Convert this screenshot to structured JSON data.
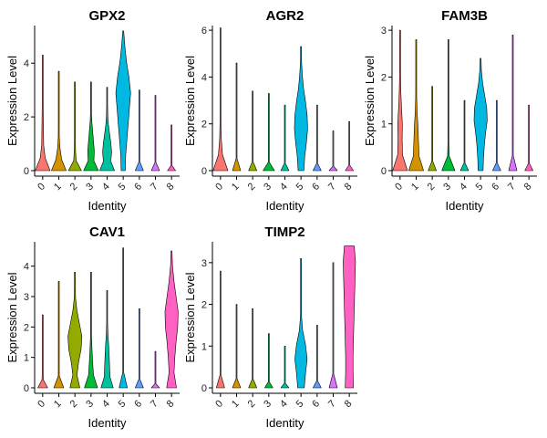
{
  "chart_data": [
    {
      "type": "violin",
      "title": "GPX2",
      "xlabel": "Identity",
      "ylabel": "Expression Level",
      "categories": [
        "0",
        "1",
        "2",
        "3",
        "4",
        "5",
        "6",
        "7",
        "8"
      ],
      "ylim": [
        0,
        5.4
      ],
      "yticks": [
        0,
        2,
        4
      ],
      "colors": [
        "#F8766D",
        "#D39200",
        "#93AA00",
        "#00BA38",
        "#00C19F",
        "#00B9E3",
        "#619CFF",
        "#DB72FB",
        "#FF61C3"
      ],
      "max_values": [
        4.3,
        3.7,
        3.3,
        3.3,
        3.1,
        5.2,
        3.0,
        2.8,
        1.7
      ],
      "widths": [
        [
          0.9,
          0.3,
          0.12,
          0.1,
          0.08,
          0.06,
          0.04,
          0.03,
          0.02,
          0.01
        ],
        [
          0.9,
          0.35,
          0.15,
          0.06,
          0.04,
          0.02,
          0.01,
          0.01,
          0.0,
          0.0
        ],
        [
          0.8,
          0.15,
          0.08,
          0.04,
          0.02,
          0.01,
          0.0,
          0.0,
          0.0,
          0.0
        ],
        [
          0.9,
          0.35,
          0.4,
          0.3,
          0.2,
          0.1,
          0.05,
          0.02,
          0.01,
          0.0
        ],
        [
          0.9,
          0.45,
          0.55,
          0.45,
          0.3,
          0.15,
          0.08,
          0.04,
          0.02,
          0.01
        ],
        [
          0.25,
          0.3,
          0.45,
          0.6,
          0.75,
          0.9,
          0.7,
          0.4,
          0.2,
          0.05
        ],
        [
          0.5,
          0.0,
          0.0,
          0.0,
          0.0,
          0.0,
          0.0,
          0.0,
          0.0,
          0.0
        ],
        [
          0.5,
          0.0,
          0.0,
          0.0,
          0.0,
          0.0,
          0.0,
          0.0,
          0.0,
          0.0
        ],
        [
          0.5,
          0.0,
          0.0,
          0.0,
          0.0,
          0.0,
          0.0,
          0.0,
          0.0,
          0.0
        ]
      ]
    },
    {
      "type": "violin",
      "title": "AGR2",
      "xlabel": "Identity",
      "ylabel": "Expression Level",
      "categories": [
        "0",
        "1",
        "2",
        "3",
        "4",
        "5",
        "6",
        "7",
        "8"
      ],
      "ylim": [
        0,
        6.2
      ],
      "yticks": [
        0,
        2,
        4,
        6
      ],
      "colors": [
        "#F8766D",
        "#D39200",
        "#93AA00",
        "#00BA38",
        "#00C19F",
        "#00B9E3",
        "#619CFF",
        "#DB72FB",
        "#FF61C3"
      ],
      "max_values": [
        6.1,
        4.6,
        3.4,
        3.3,
        2.8,
        5.3,
        2.8,
        1.7,
        2.1
      ],
      "widths": [
        [
          0.9,
          0.25,
          0.1,
          0.06,
          0.04,
          0.03,
          0.02,
          0.01,
          0.01,
          0.0
        ],
        [
          0.5,
          0.0,
          0.0,
          0.0,
          0.0,
          0.0,
          0.0,
          0.0,
          0.0,
          0.0
        ],
        [
          0.5,
          0.0,
          0.0,
          0.0,
          0.0,
          0.0,
          0.0,
          0.0,
          0.0,
          0.0
        ],
        [
          0.7,
          0.02,
          0.01,
          0.0,
          0.0,
          0.0,
          0.0,
          0.0,
          0.0,
          0.0
        ],
        [
          0.5,
          0.0,
          0.0,
          0.0,
          0.0,
          0.0,
          0.0,
          0.0,
          0.0,
          0.0
        ],
        [
          0.35,
          0.45,
          0.65,
          0.8,
          0.75,
          0.55,
          0.3,
          0.15,
          0.06,
          0.02
        ],
        [
          0.5,
          0.0,
          0.0,
          0.0,
          0.0,
          0.0,
          0.0,
          0.0,
          0.0,
          0.0
        ],
        [
          0.5,
          0.0,
          0.0,
          0.0,
          0.0,
          0.0,
          0.0,
          0.0,
          0.0,
          0.0
        ],
        [
          0.5,
          0.0,
          0.0,
          0.0,
          0.0,
          0.0,
          0.0,
          0.0,
          0.0,
          0.0
        ]
      ]
    },
    {
      "type": "violin",
      "title": "FAM3B",
      "xlabel": "Identity",
      "ylabel": "Expression Level",
      "categories": [
        "0",
        "1",
        "2",
        "3",
        "4",
        "5",
        "6",
        "7",
        "8"
      ],
      "ylim": [
        0,
        3.1
      ],
      "yticks": [
        0,
        1,
        2,
        3
      ],
      "colors": [
        "#F8766D",
        "#D39200",
        "#93AA00",
        "#00BA38",
        "#00C19F",
        "#00B9E3",
        "#619CFF",
        "#DB72FB",
        "#FF61C3"
      ],
      "max_values": [
        3.0,
        2.8,
        1.8,
        2.8,
        1.5,
        2.4,
        1.5,
        2.9,
        1.4
      ],
      "widths": [
        [
          0.9,
          0.3,
          0.25,
          0.28,
          0.18,
          0.1,
          0.06,
          0.03,
          0.02,
          0.01
        ],
        [
          0.9,
          0.35,
          0.28,
          0.22,
          0.12,
          0.06,
          0.03,
          0.01,
          0.0,
          0.0
        ],
        [
          0.5,
          0.0,
          0.0,
          0.0,
          0.0,
          0.0,
          0.0,
          0.0,
          0.0,
          0.0
        ],
        [
          0.8,
          0.1,
          0.03,
          0.02,
          0.01,
          0.0,
          0.0,
          0.0,
          0.0,
          0.0
        ],
        [
          0.5,
          0.0,
          0.0,
          0.0,
          0.0,
          0.0,
          0.0,
          0.0,
          0.0,
          0.0
        ],
        [
          0.3,
          0.35,
          0.45,
          0.6,
          0.8,
          0.75,
          0.5,
          0.25,
          0.1,
          0.02
        ],
        [
          0.5,
          0.0,
          0.0,
          0.0,
          0.0,
          0.0,
          0.0,
          0.0,
          0.0,
          0.0
        ],
        [
          0.5,
          0.0,
          0.0,
          0.0,
          0.0,
          0.0,
          0.0,
          0.0,
          0.0,
          0.0
        ],
        [
          0.5,
          0.0,
          0.0,
          0.0,
          0.0,
          0.0,
          0.0,
          0.0,
          0.0,
          0.0
        ]
      ]
    },
    {
      "type": "violin",
      "title": "CAV1",
      "xlabel": "Identity",
      "ylabel": "Expression Level",
      "categories": [
        "0",
        "1",
        "2",
        "3",
        "4",
        "5",
        "6",
        "7",
        "8"
      ],
      "ylim": [
        0,
        4.8
      ],
      "yticks": [
        0,
        1,
        2,
        3,
        4
      ],
      "colors": [
        "#F8766D",
        "#D39200",
        "#93AA00",
        "#00BA38",
        "#00C19F",
        "#00B9E3",
        "#619CFF",
        "#DB72FB",
        "#FF61C3"
      ],
      "max_values": [
        2.4,
        3.5,
        3.8,
        3.8,
        3.2,
        4.6,
        2.6,
        1.2,
        4.5
      ],
      "widths": [
        [
          0.6,
          0.08,
          0.04,
          0.02,
          0.01,
          0.0,
          0.0,
          0.0,
          0.0,
          0.0
        ],
        [
          0.6,
          0.06,
          0.03,
          0.02,
          0.01,
          0.0,
          0.0,
          0.0,
          0.0,
          0.0
        ],
        [
          0.6,
          0.25,
          0.45,
          0.75,
          0.85,
          0.55,
          0.25,
          0.08,
          0.02,
          0.01
        ],
        [
          0.8,
          0.3,
          0.2,
          0.12,
          0.06,
          0.03,
          0.02,
          0.01,
          0.0,
          0.0
        ],
        [
          0.75,
          0.35,
          0.3,
          0.25,
          0.18,
          0.1,
          0.05,
          0.02,
          0.01,
          0.0
        ],
        [
          0.5,
          0.0,
          0.0,
          0.0,
          0.0,
          0.0,
          0.0,
          0.0,
          0.0,
          0.0
        ],
        [
          0.5,
          0.0,
          0.0,
          0.0,
          0.0,
          0.0,
          0.0,
          0.0,
          0.0,
          0.0
        ],
        [
          0.5,
          0.0,
          0.0,
          0.0,
          0.0,
          0.0,
          0.0,
          0.0,
          0.0,
          0.0
        ],
        [
          0.6,
          0.3,
          0.4,
          0.55,
          0.75,
          0.8,
          0.55,
          0.3,
          0.12,
          0.04
        ]
      ]
    },
    {
      "type": "violin",
      "title": "TIMP2",
      "xlabel": "Identity",
      "ylabel": "Expression Level",
      "categories": [
        "0",
        "1",
        "2",
        "3",
        "4",
        "5",
        "6",
        "7",
        "8"
      ],
      "ylim": [
        0,
        3.5
      ],
      "yticks": [
        0,
        1,
        2,
        3
      ],
      "colors": [
        "#F8766D",
        "#D39200",
        "#93AA00",
        "#00BA38",
        "#00C19F",
        "#00B9E3",
        "#619CFF",
        "#DB72FB",
        "#FF61C3"
      ],
      "max_values": [
        2.8,
        2.0,
        1.9,
        1.3,
        1.0,
        3.1,
        1.5,
        3.0,
        3.4
      ],
      "widths": [
        [
          0.5,
          0.0,
          0.0,
          0.0,
          0.0,
          0.0,
          0.0,
          0.0,
          0.0,
          0.0
        ],
        [
          0.5,
          0.0,
          0.0,
          0.0,
          0.0,
          0.0,
          0.0,
          0.0,
          0.0,
          0.0
        ],
        [
          0.5,
          0.0,
          0.0,
          0.0,
          0.0,
          0.0,
          0.0,
          0.0,
          0.0,
          0.0
        ],
        [
          0.5,
          0.0,
          0.0,
          0.0,
          0.0,
          0.0,
          0.0,
          0.0,
          0.0,
          0.0
        ],
        [
          0.5,
          0.0,
          0.0,
          0.0,
          0.0,
          0.0,
          0.0,
          0.0,
          0.0,
          0.0
        ],
        [
          0.4,
          0.55,
          0.75,
          0.55,
          0.2,
          0.06,
          0.02,
          0.01,
          0.0,
          0.0
        ],
        [
          0.5,
          0.0,
          0.0,
          0.0,
          0.0,
          0.0,
          0.0,
          0.0,
          0.0,
          0.0
        ],
        [
          0.5,
          0.0,
          0.0,
          0.0,
          0.0,
          0.0,
          0.0,
          0.0,
          0.0,
          0.0
        ],
        [
          0.5,
          0.45,
          0.45,
          0.5,
          0.55,
          0.6,
          0.65,
          0.7,
          0.75,
          0.6
        ]
      ]
    }
  ]
}
